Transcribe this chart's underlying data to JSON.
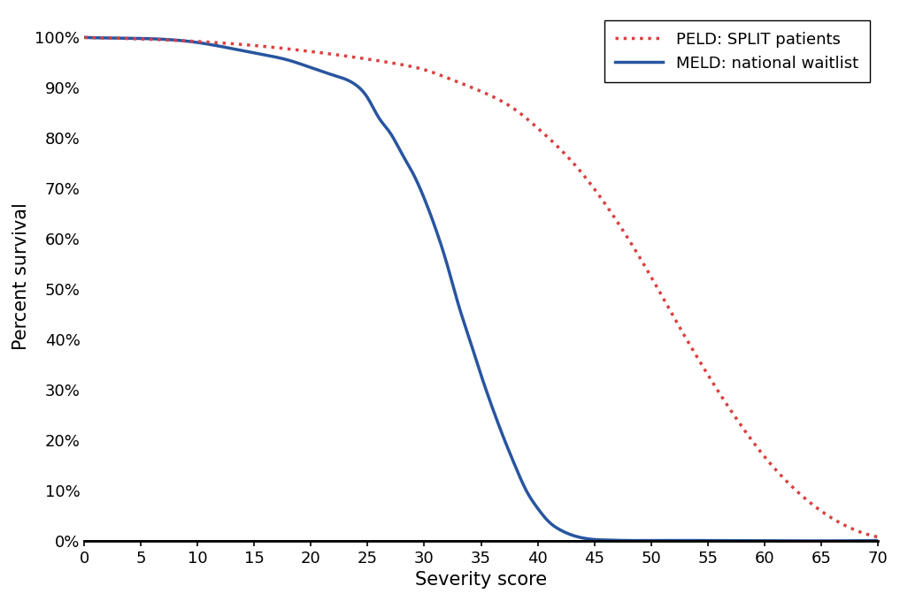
{
  "title": "",
  "xlabel": "Severity score",
  "ylabel": "Percent survival",
  "xlim": [
    0,
    70
  ],
  "ylim": [
    0,
    1.05
  ],
  "xticks": [
    0,
    5,
    10,
    15,
    20,
    25,
    30,
    35,
    40,
    45,
    50,
    55,
    60,
    65,
    70
  ],
  "yticks": [
    0,
    0.1,
    0.2,
    0.3,
    0.4,
    0.5,
    0.6,
    0.7,
    0.8,
    0.9,
    1.0
  ],
  "ytick_labels": [
    "0%",
    "10%",
    "20%",
    "30%",
    "40%",
    "50%",
    "60%",
    "70%",
    "80%",
    "90%",
    "100%"
  ],
  "meld_color": "#2855a0",
  "peld_color": "#d94040",
  "meld_label": "MELD: national waitlist",
  "peld_label": "PELD: SPLIT patients",
  "meld_x": [
    0,
    5,
    10,
    13,
    16,
    18,
    20,
    22,
    24,
    25,
    26,
    27,
    28,
    29,
    30,
    31,
    32,
    33,
    34,
    35,
    36,
    37,
    38,
    39,
    40,
    41,
    42,
    43,
    44,
    45,
    46,
    48,
    50,
    55,
    70
  ],
  "meld_y": [
    1.0,
    0.998,
    0.99,
    0.978,
    0.965,
    0.955,
    0.94,
    0.925,
    0.905,
    0.88,
    0.84,
    0.81,
    0.77,
    0.73,
    0.68,
    0.62,
    0.55,
    0.47,
    0.4,
    0.33,
    0.265,
    0.205,
    0.15,
    0.1,
    0.065,
    0.038,
    0.022,
    0.012,
    0.006,
    0.003,
    0.002,
    0.001,
    0.001,
    0.001,
    0.001
  ],
  "peld_x": [
    0,
    5,
    10,
    15,
    20,
    25,
    28,
    30,
    32,
    35,
    38,
    40,
    42,
    44,
    46,
    48,
    50,
    52,
    54,
    56,
    58,
    60,
    62,
    64,
    66,
    68,
    70
  ],
  "peld_y": [
    1.0,
    0.997,
    0.992,
    0.984,
    0.972,
    0.957,
    0.946,
    0.936,
    0.92,
    0.893,
    0.857,
    0.82,
    0.778,
    0.728,
    0.668,
    0.6,
    0.525,
    0.445,
    0.368,
    0.295,
    0.228,
    0.168,
    0.118,
    0.077,
    0.045,
    0.022,
    0.008
  ],
  "legend_loc": "upper right",
  "background_color": "#ffffff",
  "linewidth": 2.5,
  "xlabel_fontsize": 15,
  "ylabel_fontsize": 15,
  "tick_fontsize": 13,
  "legend_fontsize": 13
}
